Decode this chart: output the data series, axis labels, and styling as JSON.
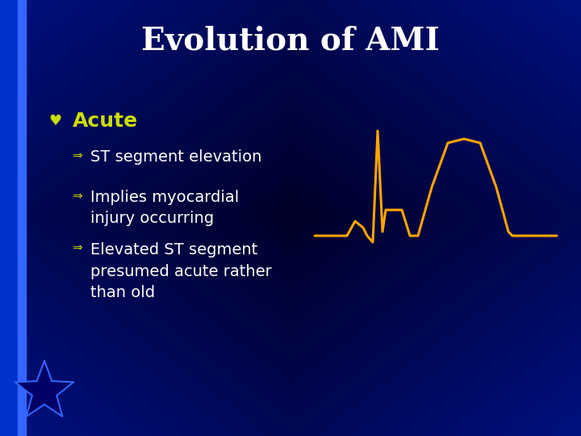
{
  "title": "Evolution of AMI",
  "title_color": "#FFFFFF",
  "title_fontsize": 28,
  "title_fontweight": "bold",
  "bg_color_center": "#000033",
  "bg_color_edge": "#0000aa",
  "bullet_h_color": "#CCDD00",
  "level1_label": "Acute",
  "level1_color": "#CCDD00",
  "level1_fontsize": 18,
  "level1_fontweight": "bold",
  "level2_items": [
    "ST segment elevation",
    "Implies myocardial\ninjury occurring",
    "Elevated ST segment\npresumed acute rather\nthan old"
  ],
  "level2_color": "#FFFFFF",
  "level2_fontsize": 14,
  "ecg_color": "#FFA500",
  "ecg_linewidth": 2.2,
  "left_bar1_color": "#0033cc",
  "left_bar2_color": "#3366ff",
  "star_fill_color": "#000066",
  "star_edge_color": "#3366ff"
}
